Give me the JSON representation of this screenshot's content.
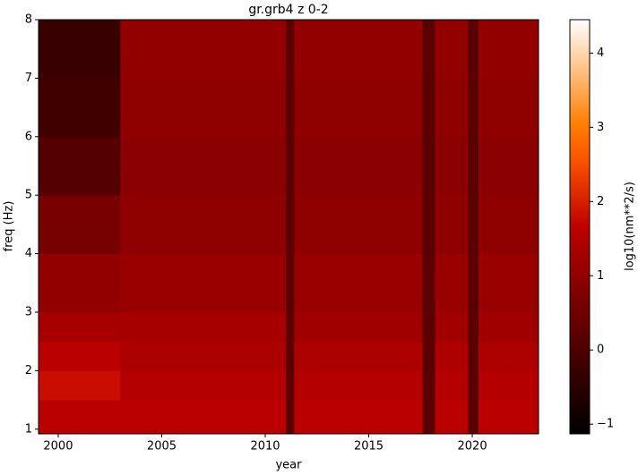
{
  "chart_data": {
    "type": "heatmap",
    "title": "gr.grb4 z 0-2",
    "xlabel": "year",
    "ylabel": "freq (Hz)",
    "colorbar_label": "log10(nm**2/s)",
    "colormap": "gist_heat",
    "x_edges": [
      1999.05,
      2003,
      2007,
      2011,
      2011.4,
      2014,
      2017.6,
      2018.2,
      2019.8,
      2020.3,
      2023.2
    ],
    "y_edges": [
      0.92,
      1.5,
      2,
      2.5,
      3,
      4,
      5,
      6,
      7,
      8
    ],
    "values": [
      [
        1.6,
        1.6,
        1.6,
        0.2,
        1.6,
        1.6,
        0.2,
        1.6,
        0.2,
        1.6
      ],
      [
        1.8,
        1.5,
        1.5,
        0.2,
        1.5,
        1.5,
        0.2,
        1.5,
        0.2,
        1.5
      ],
      [
        1.6,
        1.4,
        1.4,
        0.2,
        1.4,
        1.4,
        0.2,
        1.4,
        0.2,
        1.4
      ],
      [
        1.3,
        1.3,
        1.3,
        0.2,
        1.2,
        1.2,
        0.2,
        1.2,
        0.2,
        1.2
      ],
      [
        1.0,
        1.1,
        1.1,
        0.2,
        1.1,
        1.1,
        0.2,
        1.1,
        0.2,
        1.1
      ],
      [
        0.6,
        0.95,
        0.95,
        0.2,
        0.95,
        0.95,
        0.2,
        0.95,
        0.2,
        0.95
      ],
      [
        0.1,
        0.9,
        0.9,
        0.2,
        0.9,
        0.9,
        0.2,
        0.9,
        0.2,
        0.9
      ],
      [
        -0.2,
        0.95,
        0.95,
        0.2,
        0.95,
        0.95,
        0.2,
        0.95,
        0.2,
        0.95
      ],
      [
        -0.3,
        1.0,
        1.0,
        0.2,
        1.0,
        1.0,
        0.2,
        1.0,
        0.2,
        1.0
      ]
    ],
    "xlim": [
      1999.05,
      2023.2
    ],
    "ylim": [
      0.92,
      8
    ],
    "xticks": [
      2000,
      2005,
      2010,
      2015,
      2020
    ],
    "yticks": [
      1,
      2,
      3,
      4,
      5,
      6,
      7,
      8
    ],
    "clim": [
      -1.13,
      4.45
    ],
    "cticks": [
      {
        "value": -1,
        "label": "−1"
      },
      0,
      1,
      2,
      3,
      4
    ]
  }
}
